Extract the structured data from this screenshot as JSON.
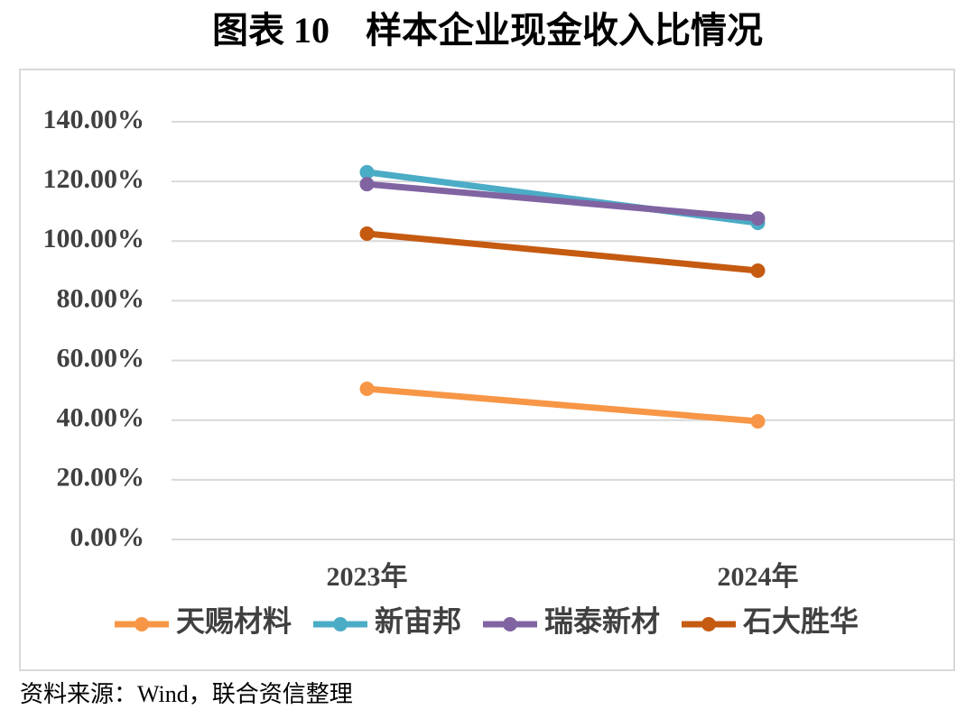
{
  "chart_data": {
    "type": "line",
    "title": "图表 10　样本企业现金收入比情况",
    "categories": [
      "2023年",
      "2024年"
    ],
    "series": [
      {
        "name": "天赐材料",
        "color": "#f79646",
        "values": [
          50.5,
          39.6
        ]
      },
      {
        "name": "新宙邦",
        "color": "#4bacc6",
        "values": [
          123.1,
          106.1
        ]
      },
      {
        "name": "瑞泰新材",
        "color": "#8064a2",
        "values": [
          119.1,
          107.6
        ]
      },
      {
        "name": "石大胜华",
        "color": "#c55a11",
        "values": [
          102.5,
          90.1
        ]
      }
    ],
    "ylim": [
      0,
      140
    ],
    "yticks": [
      {
        "value": 0,
        "label": "0.00%"
      },
      {
        "value": 20,
        "label": "20.00%"
      },
      {
        "value": 40,
        "label": "40.00%"
      },
      {
        "value": 60,
        "label": "60.00%"
      },
      {
        "value": 80,
        "label": "80.00%"
      },
      {
        "value": 100,
        "label": "100.00%"
      },
      {
        "value": 120,
        "label": "120.00%"
      },
      {
        "value": 140,
        "label": "140.00%"
      }
    ],
    "grid": true,
    "legend": "bottom",
    "source": "资料来源：Wind，联合资信整理"
  }
}
